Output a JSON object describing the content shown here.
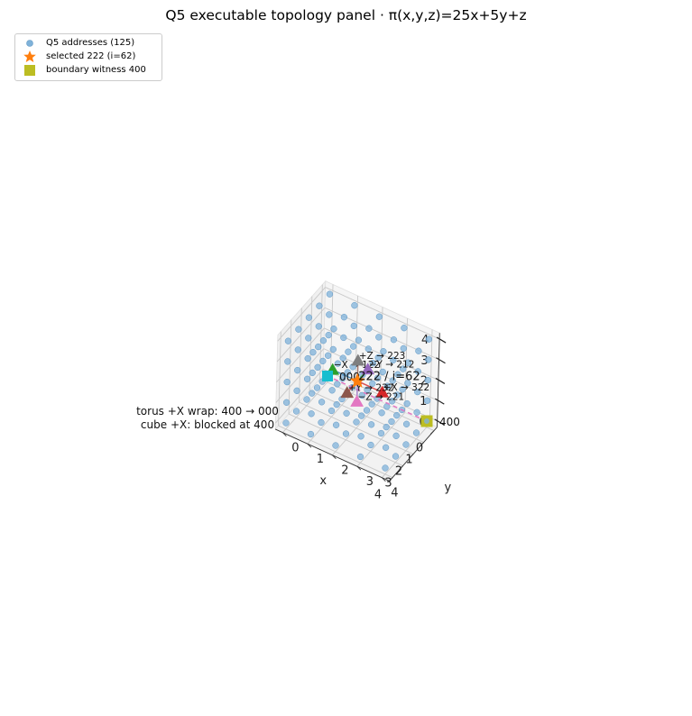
{
  "chart_data": {
    "type": "scatter",
    "title": "Q5 executable topology panel · π(x,y,z)=25x+5y+z",
    "xlabel": "x",
    "ylabel": "y",
    "zlabel": "",
    "xlim": [
      0,
      4
    ],
    "ylim": [
      0,
      4
    ],
    "zlim": [
      0,
      4
    ],
    "ticks": {
      "x": [
        "0",
        "1",
        "2",
        "3",
        "4"
      ],
      "y": [
        "0",
        "1",
        "2",
        "3",
        "4"
      ],
      "z": [
        "0",
        "1",
        "2",
        "3",
        "4"
      ]
    },
    "grid": true,
    "legend_position": "top-left",
    "colors": {
      "addresses": "#7fb2d9",
      "addresses_edge": "#5f97c4",
      "selected": "#ff7f0e",
      "witness": "#bcbd22",
      "origin": "#17becf",
      "plus_x": "#d62728",
      "minus_x": "#2ca02c",
      "plus_y": "#8c564b",
      "minus_y": "#9467bd",
      "plus_z": "#7f7f7f",
      "minus_z": "#e377c2",
      "wrap_line": "#e377c2",
      "line_plus_x": "#d62728",
      "line_minus_x": "#1f77b4",
      "line_plus_y": "#d62728",
      "line_minus_y": "#2ca02c",
      "line_plus_z": "#8c564b",
      "line_minus_z": "#9467bd"
    },
    "series": [
      {
        "name": "Q5 addresses (125)",
        "marker": "circle",
        "points": "all integer (x,y,z) with x,y,z in 0..4"
      },
      {
        "name": "selected 222 (i=62)",
        "marker": "star",
        "points": [
          {
            "x": 2,
            "y": 2,
            "z": 2
          }
        ]
      },
      {
        "name": "boundary witness 400",
        "marker": "square",
        "points": [
          {
            "x": 4,
            "y": 0,
            "z": 0
          }
        ]
      }
    ],
    "neighbors": [
      {
        "key": "plus_x",
        "label": "+X → 322",
        "x": 3,
        "y": 2,
        "z": 2
      },
      {
        "key": "minus_x",
        "label": "−X → 122",
        "x": 1,
        "y": 2,
        "z": 2
      },
      {
        "key": "plus_y",
        "label": "+Y → 232",
        "x": 2,
        "y": 3,
        "z": 2
      },
      {
        "key": "minus_y",
        "label": "−Y → 212",
        "x": 2,
        "y": 1,
        "z": 2
      },
      {
        "key": "plus_z",
        "label": "+Z → 223",
        "x": 2,
        "y": 2,
        "z": 3
      },
      {
        "key": "minus_z",
        "label": "−Z → 221",
        "x": 2,
        "y": 2,
        "z": 1
      }
    ],
    "annotations": {
      "selected_label": "222 / i=62",
      "origin_label": "000",
      "witness_label": "400",
      "wrap_note": "torus +X wrap: 400 → 000\ncube +X: blocked at 400"
    }
  },
  "legend": {
    "items": [
      {
        "label": "Q5 addresses (125)"
      },
      {
        "label": "selected 222 (i=62)"
      },
      {
        "label": "boundary witness 400"
      }
    ]
  }
}
